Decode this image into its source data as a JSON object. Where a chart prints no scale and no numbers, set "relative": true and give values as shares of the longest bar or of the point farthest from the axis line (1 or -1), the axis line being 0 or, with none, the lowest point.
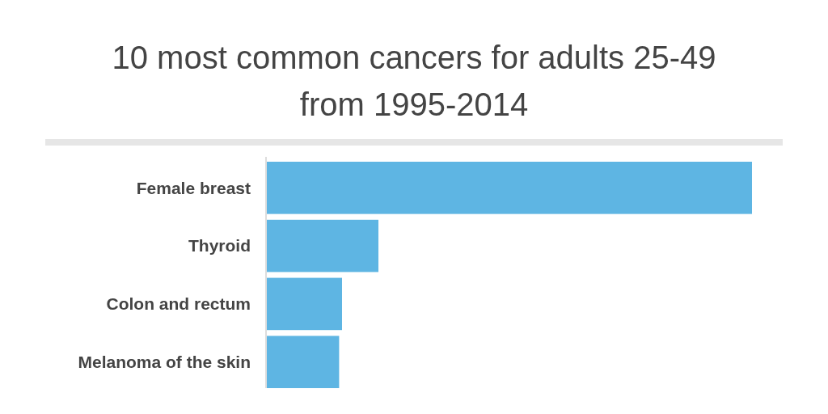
{
  "chart_data": {
    "type": "bar",
    "orientation": "horizontal",
    "relative": true,
    "title": "10 most common cancers for adults 25-49 from 1995-2014",
    "categories": [
      "Female breast",
      "Thyroid",
      "Colon and rectum",
      "Melanoma of the skin"
    ],
    "values": [
      1,
      0.23,
      0.155,
      0.149
    ],
    "color": "#5eb5e3"
  }
}
